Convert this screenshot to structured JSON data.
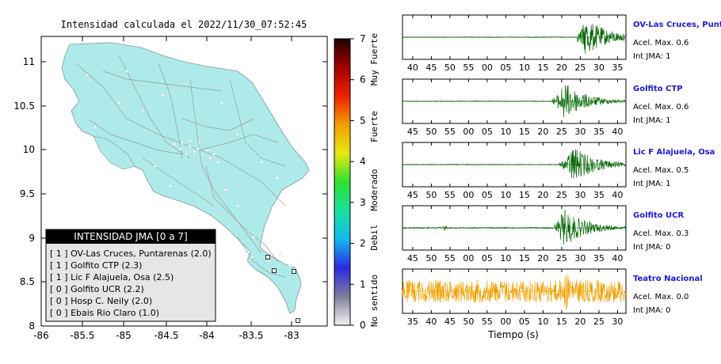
{
  "map": {
    "title": "Intensidad calculada el 2022/11/30_07:52:45",
    "colors": {
      "land": "#aeeaea",
      "roads": "#9a9a9a",
      "frame": "#000000"
    },
    "lon_ticks": [
      "-86",
      "-85.5",
      "-85",
      "-84.5",
      "-84",
      "-83.5",
      "-83"
    ],
    "lat_ticks": [
      "11",
      "10.5",
      "10",
      "9.5",
      "9",
      "8.5",
      "8"
    ],
    "legend": {
      "title": "INTENSIDAD JMA [0 a 7]",
      "items": [
        "[ 1 ] OV-Las Cruces, Puntarenas (2.0)",
        "[ 1 ] Golfito CTP (2.3)",
        "[ 1 ] Lic F Alajuela, Osa (2.5)",
        "[ 0 ] Golfito UCR (2.2)",
        "[ 0 ] Hosp C. Neily (2.0)",
        "[ 0 ] Ebais Rio Claro (1.0)"
      ]
    }
  },
  "colorbar": {
    "ticks": [
      "7",
      "6",
      "5",
      "4",
      "3",
      "2",
      "1",
      "0"
    ],
    "labels": [
      "Muy Fuerte",
      "Fuerte",
      "Moderado",
      "Debil",
      "No sentido"
    ],
    "colors": [
      "#f2f2f2",
      "#7f7f9e",
      "#2a2ae0",
      "#14b8f0",
      "#18e0a0",
      "#30e030",
      "#e8e810",
      "#f0a000",
      "#f02000",
      "#a00000",
      "#200000"
    ]
  },
  "chart_data": {
    "type": "line",
    "xlabel": "Tiempo (s)",
    "panels": [
      {
        "station": "OV-Las Cruces, Puntar",
        "accel_label": "Acel. Max. 0.6",
        "int_label": "Int JMA: 1",
        "color": "#006400",
        "x_ticks": [
          "40",
          "45",
          "50",
          "55",
          "00",
          "05",
          "10",
          "15",
          "20",
          "25",
          "30",
          "35"
        ],
        "waveform": {
          "onset": 0.78,
          "peak": 0.82,
          "noise": 0.02
        }
      },
      {
        "station": "Golfito CTP",
        "accel_label": "Acel. Max. 0.6",
        "int_label": "Int JMA: 1",
        "color": "#006400",
        "x_ticks": [
          "45",
          "50",
          "55",
          "00",
          "05",
          "10",
          "15",
          "20",
          "25",
          "30",
          "35",
          "40"
        ],
        "waveform": {
          "onset": 0.67,
          "peak": 0.72,
          "noise": 0.02
        }
      },
      {
        "station": "Lic F Alajuela, Osa",
        "accel_label": "Acel. Max. 0.5",
        "int_label": "Int JMA: 1",
        "color": "#006400",
        "x_ticks": [
          "45",
          "50",
          "55",
          "00",
          "05",
          "10",
          "15",
          "20",
          "25",
          "30",
          "35",
          "40"
        ],
        "waveform": {
          "onset": 0.7,
          "peak": 0.76,
          "noise": 0.02
        }
      },
      {
        "station": "Golfito UCR",
        "accel_label": "Acel. Max. 0.3",
        "int_label": "Int JMA: 0",
        "color": "#006400",
        "x_ticks": [
          "45",
          "50",
          "55",
          "00",
          "05",
          "10",
          "15",
          "20",
          "25",
          "30",
          "35",
          "40"
        ],
        "waveform": {
          "onset": 0.68,
          "peak": 0.72,
          "noise": 0.03
        }
      },
      {
        "station": "Teatro Nacional",
        "accel_label": "Acel. Max. 0.0",
        "int_label": "Int JMA: 0",
        "color": "#f0a000",
        "x_ticks": [
          "35",
          "40",
          "45",
          "50",
          "55",
          "00",
          "05",
          "10",
          "15",
          "20",
          "25",
          "30"
        ],
        "waveform": {
          "onset": 0.72,
          "peak": 0.73,
          "noise": 0.55
        }
      }
    ]
  }
}
